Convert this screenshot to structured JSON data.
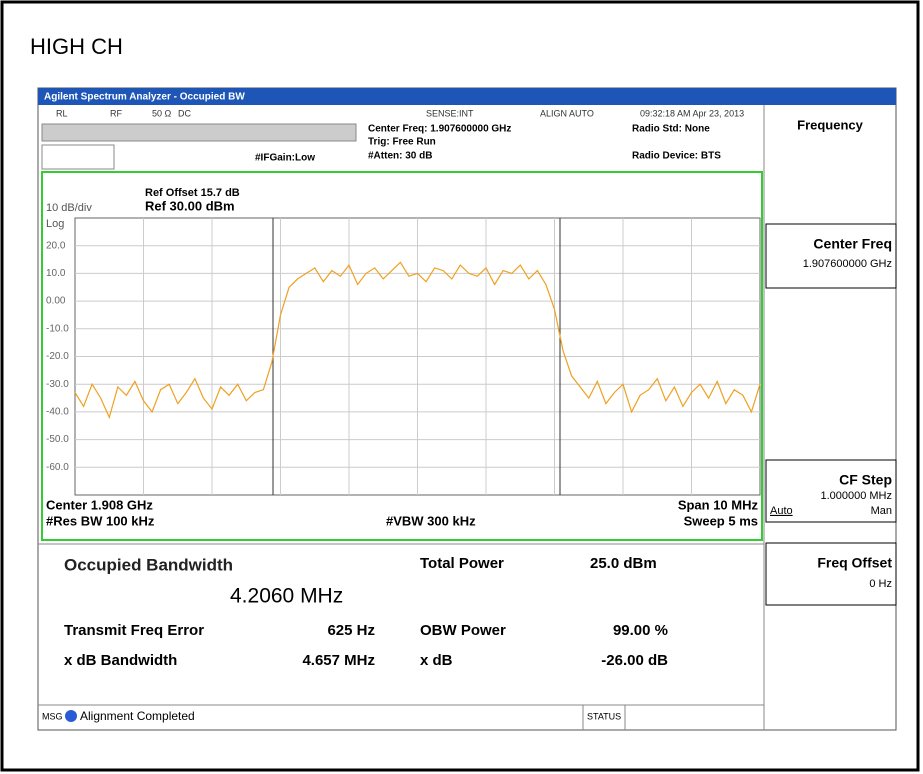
{
  "page_title": "HIGH CH",
  "window": {
    "title": "Agilent Spectrum Analyzer - Occupied BW",
    "status_row": [
      "RL",
      "RF",
      "50 Ω",
      "DC",
      "SENSE:INT",
      "ALIGN AUTO",
      "09:32:18 AM Apr 23, 2013"
    ],
    "center_freq": "Center Freq: 1.907600000 GHz",
    "trig": "Trig: Free Run",
    "if_gain": "#IFGain:Low",
    "atten": "#Atten: 30 dB",
    "radio_std": "Radio Std: None",
    "radio_device": "Radio Device: BTS"
  },
  "chart_data": {
    "type": "line",
    "ref_offset": "Ref Offset 15.7 dB",
    "ref_level": "Ref 30.00 dBm",
    "scale": "10 dB/div",
    "scale_type": "Log",
    "ylim": [
      -70,
      30
    ],
    "yticks": [
      {
        "value": 20,
        "label": "20.0"
      },
      {
        "value": 10,
        "label": "10.0"
      },
      {
        "value": 0,
        "label": "0.00"
      },
      {
        "value": -10,
        "label": "-10.0"
      },
      {
        "value": -20,
        "label": "-20.0"
      },
      {
        "value": -30,
        "label": "-30.0"
      },
      {
        "value": -40,
        "label": "-40.0"
      },
      {
        "value": -50,
        "label": "-50.0"
      },
      {
        "value": -60,
        "label": "-60.0"
      }
    ],
    "color": "#f0a020",
    "values": [
      -33,
      -38,
      -30,
      -35,
      -42,
      -31,
      -34,
      -29,
      -36,
      -40,
      -32,
      -30,
      -37,
      -33,
      -28,
      -35,
      -39,
      -31,
      -34,
      -30,
      -36,
      -33,
      -32,
      -22,
      -5,
      5,
      8,
      10,
      12,
      7,
      11,
      9,
      13,
      6,
      10,
      12,
      8,
      11,
      14,
      9,
      10,
      7,
      12,
      11,
      8,
      13,
      10,
      9,
      12,
      6,
      11,
      10,
      13,
      8,
      11,
      6,
      -3,
      -18,
      -27,
      -31,
      -35,
      -29,
      -37,
      -33,
      -30,
      -40,
      -34,
      -32,
      -28,
      -36,
      -31,
      -38,
      -33,
      -30,
      -35,
      -29,
      -37,
      -32,
      -34,
      -40,
      -30
    ],
    "center": "Center  1.908 GHz",
    "res_bw": "#Res BW  100 kHz",
    "vbw": "#VBW  300 kHz",
    "span": "Span 10 MHz",
    "sweep": "Sweep  5 ms"
  },
  "results": {
    "title": "Occupied Bandwidth",
    "obw": "4.2060 MHz",
    "rows": [
      [
        "Transmit Freq Error",
        "625 Hz",
        "OBW Power",
        "99.00 %"
      ],
      [
        "x dB Bandwidth",
        "4.657 MHz",
        "x dB",
        "-26.00 dB"
      ]
    ],
    "total_power_label": "Total Power",
    "total_power": "25.0 dBm"
  },
  "status_bar": {
    "msg": "MSG",
    "text": "Alignment Completed",
    "status": "STATUS"
  },
  "softkeys": {
    "menu": "Frequency",
    "center_freq": "Center Freq",
    "center_freq_value": "1.907600000 GHz",
    "cf_step": "CF Step",
    "cf_step_value": "1.000000 MHz",
    "auto": "Auto",
    "man": "Man",
    "freq_offset": "Freq Offset",
    "freq_offset_value": "0 Hz"
  }
}
